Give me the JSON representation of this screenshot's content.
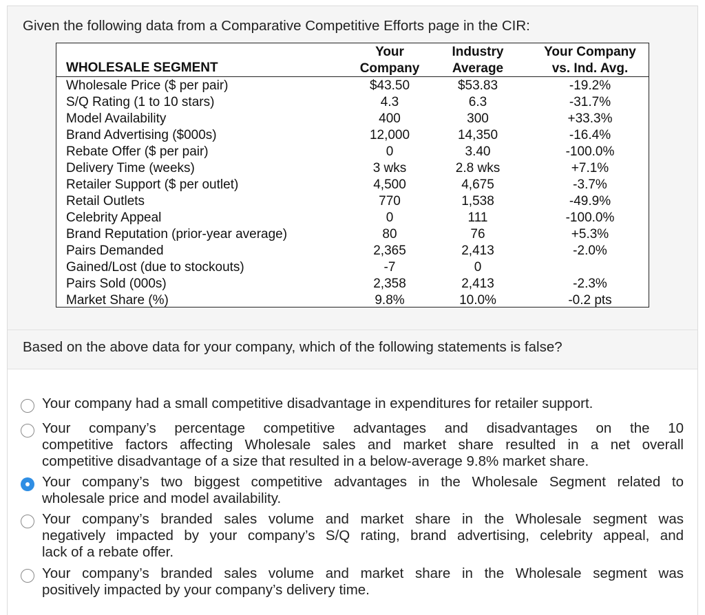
{
  "question": {
    "stem": "Given the following data from a Comparative Competitive Efforts page in the CIR:",
    "prompt": "Based on the above data for your company, which of the following statements is false?"
  },
  "table": {
    "headers": {
      "segment": "WHOLESALE SEGMENT",
      "company": [
        "Your",
        "Company"
      ],
      "industry": [
        "Industry",
        "Average"
      ],
      "vs": [
        "Your Company",
        "vs. Ind. Avg."
      ]
    },
    "rows": [
      {
        "label": "Wholesale Price ($ per pair)",
        "company": "$43.50",
        "industry": "$53.83",
        "vs": "-19.2%"
      },
      {
        "label": "S/Q Rating (1 to 10 stars)",
        "company": "4.3",
        "industry": "6.3",
        "vs": "-31.7%"
      },
      {
        "label": "Model Availability",
        "company": "400",
        "industry": "300",
        "vs": "+33.3%"
      },
      {
        "label": "Brand Advertising ($000s)",
        "company": "12,000",
        "industry": "14,350",
        "vs": "-16.4%"
      },
      {
        "label": "Rebate Offer ($ per pair)",
        "company": "0",
        "industry": "3.40",
        "vs": "-100.0%"
      },
      {
        "label": "Delivery Time (weeks)",
        "company": "3 wks",
        "industry": "2.8 wks",
        "vs": "+7.1%"
      },
      {
        "label": "Retailer Support ($ per outlet)",
        "company": "4,500",
        "industry": "4,675",
        "vs": "-3.7%"
      },
      {
        "label": "Retail Outlets",
        "company": "770",
        "industry": "1,538",
        "vs": "-49.9%"
      },
      {
        "label": "Celebrity Appeal",
        "company": "0",
        "industry": "111",
        "vs": "-100.0%"
      },
      {
        "label": "Brand Reputation (prior-year average)",
        "company": "80",
        "industry": "76",
        "vs": "+5.3%"
      },
      {
        "label": "Pairs Demanded",
        "company": "2,365",
        "industry": "2,413",
        "vs": "-2.0%"
      },
      {
        "label": "Gained/Lost (due to stockouts)",
        "company": "-7",
        "industry": "0",
        "vs": ""
      },
      {
        "label": "Pairs Sold (000s)",
        "company": "2,358",
        "industry": "2,413",
        "vs": "-2.3%"
      },
      {
        "label": "Market Share (%)",
        "company": "9.8%",
        "industry": "10.0%",
        "vs": "-0.2 pts"
      }
    ]
  },
  "options": [
    {
      "lines": [
        "Your company had a small competitive disadvantage in expenditures for retailer support."
      ],
      "selected": false
    },
    {
      "lines": [
        "Your company’s percentage competitive advantages and disadvantages on the 10",
        "competitive factors affecting Wholesale sales and market share resulted in a net overall",
        "competitive disadvantage of a size that resulted in a below-average 9.8% market share."
      ],
      "selected": false
    },
    {
      "lines": [
        "Your company’s two biggest competitive advantages in the Wholesale Segment related to",
        "wholesale price and model availability."
      ],
      "selected": true
    },
    {
      "lines": [
        "Your company’s branded sales volume and market share in the Wholesale segment was",
        "negatively impacted by your company’s S/Q rating, brand advertising, celebrity appeal, and",
        "lack of a rebate offer."
      ],
      "selected": false
    },
    {
      "lines": [
        "Your company’s branded sales volume and market share in the Wholesale segment was",
        "positively impacted by your company’s delivery time."
      ],
      "selected": false
    }
  ],
  "colors": {
    "selected_radio": "#2f8ee4",
    "band_background": "#f5f5f5"
  }
}
